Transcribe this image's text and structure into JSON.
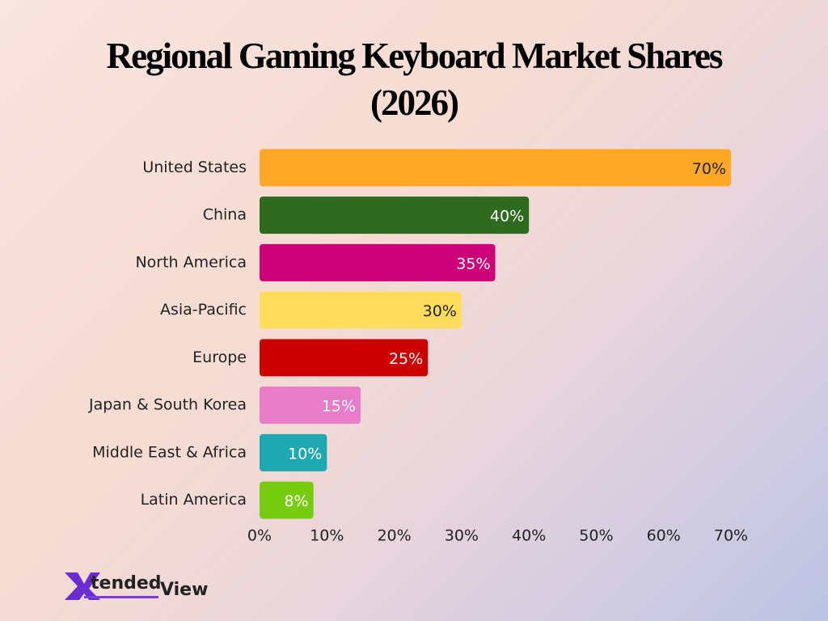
{
  "chart_data": {
    "type": "hbar",
    "title": "Regional Gaming Keyboard Market Shares (2026)",
    "categories": [
      "United States",
      "China",
      "North America",
      "Asia-Pacific",
      "Europe",
      "Japan & South Korea",
      "Middle East & Africa",
      "Latin America"
    ],
    "values": [
      70,
      40,
      35,
      30,
      25,
      15,
      10,
      8
    ],
    "value_labels": [
      "70%",
      "40%",
      "35%",
      "30%",
      "25%",
      "15%",
      "10%",
      "8%"
    ],
    "colors": [
      "#FFA726",
      "#2E6B1E",
      "#CC0077",
      "#FFDD5C",
      "#CC0000",
      "#E87CC8",
      "#1FA8B0",
      "#77CC11"
    ],
    "xlim": [
      0,
      70
    ],
    "xticks": [
      {
        "value": 0,
        "label": "0%"
      },
      {
        "value": 10,
        "label": "10%"
      },
      {
        "value": 20,
        "label": "20%"
      },
      {
        "value": 30,
        "label": "30%"
      },
      {
        "value": 40,
        "label": "40%"
      },
      {
        "value": 50,
        "label": "50%"
      },
      {
        "value": 60,
        "label": "60%"
      },
      {
        "value": 70,
        "label": "70%"
      }
    ],
    "grid": false
  },
  "brand": {
    "letter": "X",
    "name": "tended",
    "suffix": "View"
  }
}
